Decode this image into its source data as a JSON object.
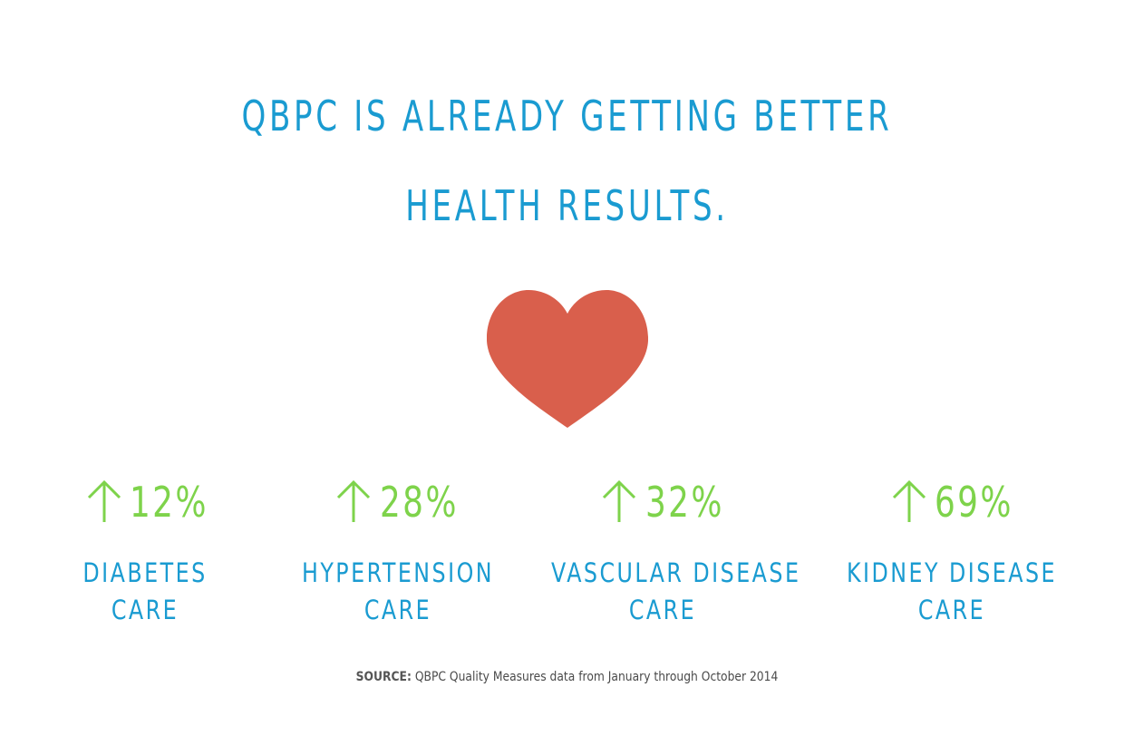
{
  "title": {
    "line1": "QBPC IS ALREADY GETTING BETTER",
    "line2": "HEALTH RESULTS."
  },
  "icons": {
    "heart": "heart-icon",
    "arrow": "arrow-up-icon"
  },
  "colors": {
    "title": "#1a9bd1",
    "percent": "#7ed34b",
    "heart": "#d95f4c",
    "label": "#1a9bd1"
  },
  "stats": [
    {
      "value": "12%",
      "label_line1": "DIABETES",
      "label_line2": "CARE"
    },
    {
      "value": "28%",
      "label_line1": "HYPERTENSION",
      "label_line2": "CARE"
    },
    {
      "value": "32%",
      "label_line1": "VASCULAR DISEASE",
      "label_line2": "CARE"
    },
    {
      "value": "69%",
      "label_line1": "KIDNEY DISEASE",
      "label_line2": "CARE"
    }
  ],
  "source": {
    "label": "SOURCE:",
    "text": "QBPC Quality Measures data from January through October 2014"
  }
}
